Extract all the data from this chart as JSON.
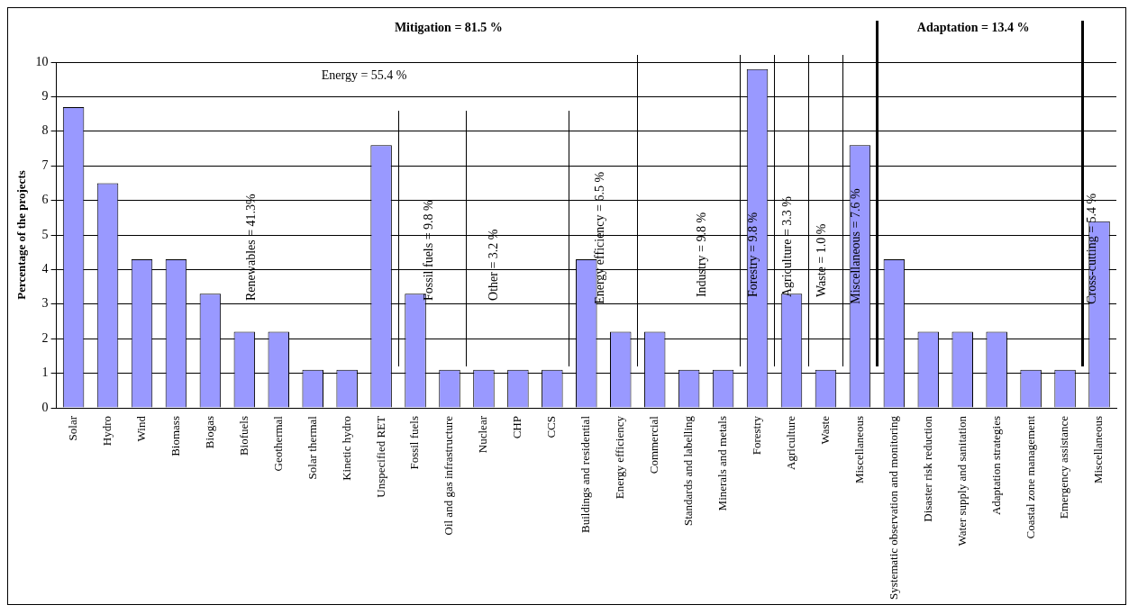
{
  "chart_data": {
    "type": "bar",
    "ylabel": "Percentage of the projects",
    "categories": [
      "Solar",
      "Hydro",
      "Wind",
      "Biomass",
      "Biogas",
      "Biofuels",
      "Geothermal",
      "Solar thermal",
      "Kinetic hydro",
      "Unspecified RET",
      "Fossil fuels",
      "Oil and gas infrastructure",
      "Nuclear",
      "CHP",
      "CCS",
      "Buildings and residential",
      "Energy efficiency",
      "Commercial",
      "Standards and labelling",
      "Minerals and metals",
      "Forestry",
      "Agriculture",
      "Waste",
      "Miscellaneous",
      "Systematic observation and monitoring",
      "Disaster risk reduction",
      "Water supply and sanitation",
      "Adaptation strategies",
      "Coastal zone management",
      "Emergency assistance",
      "Miscellaneous"
    ],
    "values": [
      8.7,
      6.5,
      4.3,
      4.3,
      3.3,
      2.2,
      2.2,
      1.1,
      1.1,
      7.6,
      3.3,
      1.1,
      1.1,
      1.1,
      1.1,
      4.3,
      2.2,
      2.2,
      1.1,
      1.1,
      9.8,
      3.3,
      1.1,
      7.6,
      4.3,
      2.2,
      2.2,
      2.2,
      1.1,
      1.1,
      5.4
    ],
    "color": "#9999ff",
    "ylim": [
      0,
      10
    ],
    "yticks": [
      0,
      1,
      2,
      3,
      4,
      5,
      6,
      7,
      8,
      9,
      10
    ],
    "grid": "y",
    "annotations": [
      "Mitigation = 81.5 %",
      "Adaptation = 13.4 %",
      "Renewables = 41.3%",
      "Energy = 55.4 %",
      "Fossil fuels = 9.8 %",
      "Other = 3.2 %",
      "Energy efficiency = 6.5 %",
      "Industry = 9.8 %",
      "Forestry = 9.8 %",
      "Agriculture = 3.3 %",
      "Waste = 1.0 %",
      "Miscellaneous = 7.6 %",
      "Cross-cutting = 5.4 %"
    ]
  }
}
